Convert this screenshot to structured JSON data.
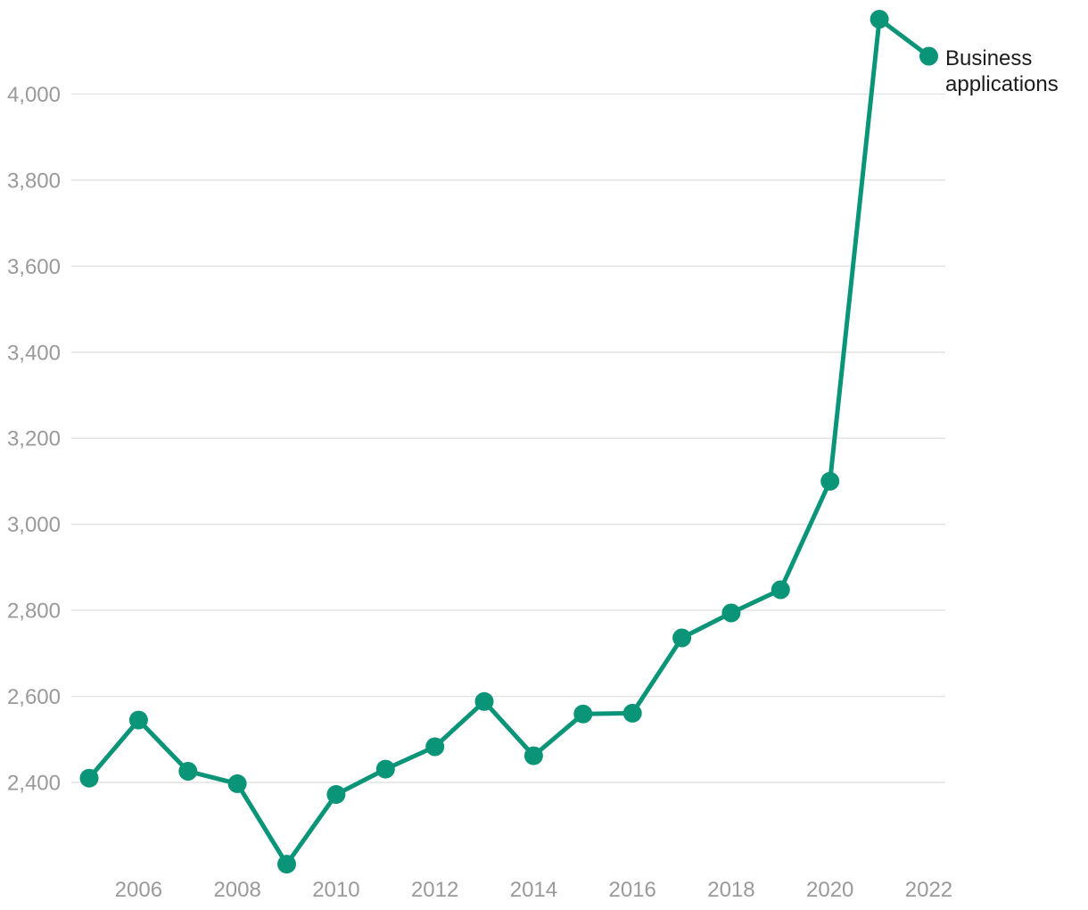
{
  "chart_data": {
    "type": "line",
    "title": "",
    "xlabel": "",
    "ylabel": "",
    "grid": "horizontal",
    "legend_position": "right-of-last-point",
    "series": [
      {
        "name": "Business applications",
        "color": "#0a9478",
        "x": [
          2005,
          2006,
          2007,
          2008,
          2009,
          2010,
          2011,
          2012,
          2013,
          2014,
          2015,
          2016,
          2017,
          2018,
          2019,
          2020,
          2021,
          2022
        ],
        "values": [
          2410,
          2545,
          2426,
          2397,
          2210,
          2372,
          2431,
          2483,
          2588,
          2462,
          2559,
          2561,
          2736,
          2794,
          2848,
          3100,
          4174,
          4088
        ]
      }
    ],
    "x_tick_years": [
      2006,
      2008,
      2010,
      2012,
      2014,
      2016,
      2018,
      2020,
      2022
    ],
    "x_tick_labels": [
      "2006",
      "2008",
      "2010",
      "2012",
      "2014",
      "2016",
      "2018",
      "2020",
      "2022"
    ],
    "y_tick_values": [
      2400,
      2600,
      2800,
      3000,
      3200,
      3400,
      3600,
      3800,
      4000
    ],
    "y_tick_labels": [
      "2,400",
      "2,600",
      "2,800",
      "3,000",
      "3,200",
      "3,400",
      "3,600",
      "3,800",
      "4,000"
    ],
    "xlim": [
      2005,
      2022
    ],
    "ylim": [
      2200,
      4200
    ],
    "colors": {
      "line": "#0a9478",
      "grid": "#e2e2e2",
      "tick_label": "#9a9a9a",
      "legend_text": "#1c1c1c",
      "background": "#ffffff"
    }
  }
}
